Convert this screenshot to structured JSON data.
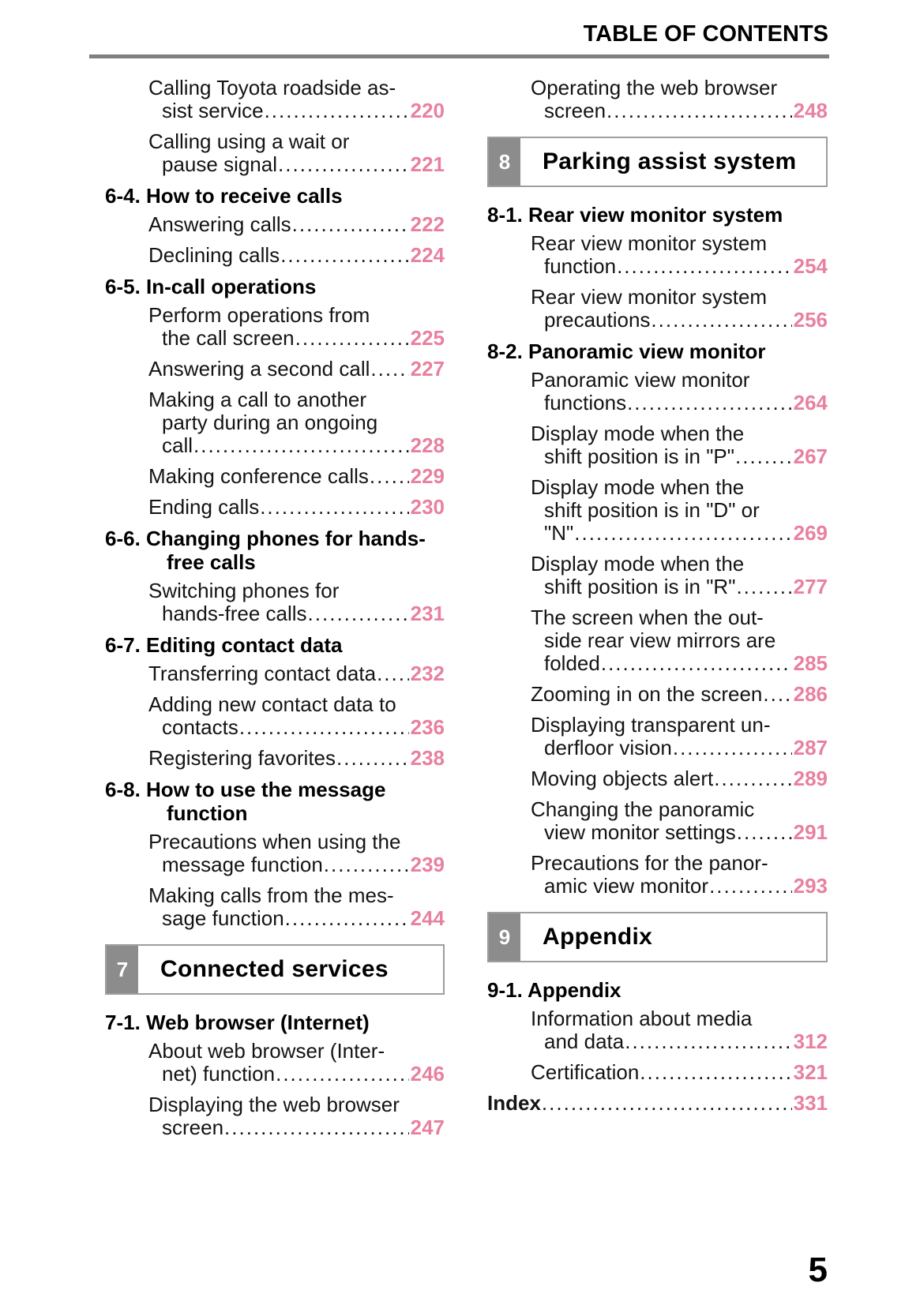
{
  "header": {
    "title": "TABLE OF CONTENTS"
  },
  "footer": {
    "page_number": "5"
  },
  "colors": {
    "accent_pink": "#e8819f",
    "section_number_bg": "#8c8c8c",
    "rule_gray": "#7f7f7f",
    "box_border_gray": "#9e9e9e"
  },
  "columns": {
    "left": [
      {
        "type": "entry",
        "lines": [
          "Calling Toyota roadside as-",
          "sist service"
        ],
        "page": "220"
      },
      {
        "type": "entry",
        "lines": [
          "Calling using a wait or",
          "pause signal "
        ],
        "page": "221"
      },
      {
        "type": "subsection",
        "lines": [
          "6-4. How to receive calls"
        ]
      },
      {
        "type": "entry",
        "lines": [
          "Answering calls"
        ],
        "page": "222"
      },
      {
        "type": "entry",
        "lines": [
          "Declining calls"
        ],
        "page": "224"
      },
      {
        "type": "subsection",
        "lines": [
          "6-5. In-call operations"
        ]
      },
      {
        "type": "entry",
        "lines": [
          "Perform operations from",
          "the call screen "
        ],
        "page": "225"
      },
      {
        "type": "entry",
        "lines": [
          "Answering a second call "
        ],
        "page": "227"
      },
      {
        "type": "entry",
        "lines": [
          "Making a call to another",
          "party during an ongoing",
          "call "
        ],
        "page": "228"
      },
      {
        "type": "entry",
        "lines": [
          "Making conference calls "
        ],
        "page": "229"
      },
      {
        "type": "entry",
        "lines": [
          "Ending calls "
        ],
        "page": "230"
      },
      {
        "type": "subsection",
        "lines": [
          "6-6. Changing phones for hands-",
          "free calls"
        ]
      },
      {
        "type": "entry",
        "lines": [
          "Switching phones for",
          "hands-free calls "
        ],
        "page": "231"
      },
      {
        "type": "subsection",
        "lines": [
          "6-7. Editing contact data"
        ]
      },
      {
        "type": "entry",
        "lines": [
          "Transferring contact data"
        ],
        "page": "232"
      },
      {
        "type": "entry",
        "lines": [
          "Adding new contact data to",
          "contacts "
        ],
        "page": "236"
      },
      {
        "type": "entry",
        "lines": [
          "Registering favorites"
        ],
        "page": "238"
      },
      {
        "type": "subsection",
        "lines": [
          "6-8. How to use the message",
          "function"
        ]
      },
      {
        "type": "entry",
        "lines": [
          "Precautions when using the",
          "message function "
        ],
        "page": "239"
      },
      {
        "type": "entry",
        "lines": [
          "Making calls from the mes-",
          "sage function "
        ],
        "page": "244"
      },
      {
        "type": "section-box",
        "number": "7",
        "title": "Connected services"
      },
      {
        "type": "subsection",
        "lines": [
          "7-1. Web browser (Internet)"
        ]
      },
      {
        "type": "entry",
        "lines": [
          "About web browser (Inter-",
          "net) function"
        ],
        "page": "246"
      },
      {
        "type": "entry",
        "lines": [
          "Displaying the web browser",
          "screen"
        ],
        "page": "247"
      }
    ],
    "right": [
      {
        "type": "entry",
        "lines": [
          "Operating the web browser",
          "screen"
        ],
        "page": "248"
      },
      {
        "type": "section-box",
        "number": "8",
        "title": "Parking assist system"
      },
      {
        "type": "subsection",
        "lines": [
          "8-1. Rear view monitor system"
        ]
      },
      {
        "type": "entry",
        "lines": [
          "Rear view monitor system",
          "function "
        ],
        "page": "254"
      },
      {
        "type": "entry",
        "lines": [
          "Rear view monitor system",
          "precautions "
        ],
        "page": "256"
      },
      {
        "type": "subsection",
        "lines": [
          "8-2. Panoramic view monitor"
        ]
      },
      {
        "type": "entry",
        "lines": [
          "Panoramic view monitor",
          "functions "
        ],
        "page": "264"
      },
      {
        "type": "entry",
        "lines": [
          "Display mode when the",
          "shift position is in \"P\" "
        ],
        "page": "267"
      },
      {
        "type": "entry",
        "lines": [
          "Display mode when the",
          "shift position is in \"D\" or",
          "\"N\""
        ],
        "page": "269"
      },
      {
        "type": "entry",
        "lines": [
          "Display mode when the",
          "shift position is in \"R\" "
        ],
        "page": "277"
      },
      {
        "type": "entry",
        "lines": [
          "The screen when the out-",
          "side rear view mirrors are",
          "folded"
        ],
        "page": "285"
      },
      {
        "type": "entry",
        "lines": [
          "Zooming in on the screen "
        ],
        "page": "286"
      },
      {
        "type": "entry",
        "lines": [
          "Displaying transparent un-",
          "derfloor vision "
        ],
        "page": "287"
      },
      {
        "type": "entry",
        "lines": [
          "Moving objects alert"
        ],
        "page": "289"
      },
      {
        "type": "entry",
        "lines": [
          "Changing the panoramic",
          "view monitor settings "
        ],
        "page": "291"
      },
      {
        "type": "entry",
        "lines": [
          "Precautions for the panor-",
          "amic view monitor "
        ],
        "page": "293"
      },
      {
        "type": "section-box",
        "number": "9",
        "title": "Appendix"
      },
      {
        "type": "subsection",
        "lines": [
          "9-1. Appendix"
        ]
      },
      {
        "type": "entry",
        "lines": [
          "Information about media",
          "and data"
        ],
        "page": "312"
      },
      {
        "type": "entry",
        "lines": [
          "Certification"
        ],
        "page": "321"
      },
      {
        "type": "index",
        "lines": [
          "Index"
        ],
        "page": "331"
      }
    ]
  }
}
